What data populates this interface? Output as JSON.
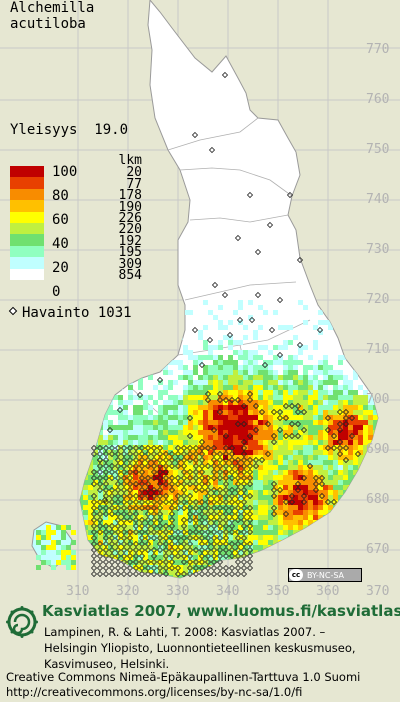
{
  "species": {
    "line1": "Alchemilla",
    "line2": "acutiloba"
  },
  "frequency": {
    "label": "Yleisyys",
    "value": "19.0"
  },
  "legend": {
    "count_header": "lkm",
    "percent_labels": [
      "100",
      "80",
      "60",
      "40",
      "20",
      "0"
    ],
    "classes": [
      {
        "color": "#c00000",
        "count": "20"
      },
      {
        "color": "#e84000",
        "count": "77"
      },
      {
        "color": "#f88c00",
        "count": "178"
      },
      {
        "color": "#ffc000",
        "count": "190"
      },
      {
        "color": "#ffff00",
        "count": "226"
      },
      {
        "color": "#c0f040",
        "count": "220"
      },
      {
        "color": "#70e070",
        "count": "192"
      },
      {
        "color": "#90ffc0",
        "count": "195"
      },
      {
        "color": "#c0ffff",
        "count": "309"
      },
      {
        "color": "#ffffff",
        "count": "854"
      }
    ],
    "observation_label": "Havainto",
    "observation_count": "1031"
  },
  "grid_labels": {
    "northing": [
      "770",
      "760",
      "750",
      "740",
      "730",
      "720",
      "710",
      "700",
      "690",
      "680",
      "670"
    ],
    "easting": [
      "310",
      "320",
      "330",
      "340",
      "350",
      "360",
      "370"
    ]
  },
  "license_badge": {
    "cc": "cc",
    "text": "BY-NC-SA"
  },
  "footer": {
    "title": "Kasviatlas 2007, www.luomus.fi/kasviatlas",
    "citation_line1": "Lampinen, R. & Lahti, T. 2008: Kasviatlas 2007. –",
    "citation_line2": "Helsingin Yliopisto, Luonnontieteellinen keskusmuseo,",
    "citation_line3": "Kasvimuseo, Helsinki.",
    "license_line1": "Creative Commons Nimeä-Epäkaupallinen-Tarttuva 1.0 Suomi",
    "license_line2": "http://creativecommons.org/licenses/by-nc-sa/1.0/fi"
  },
  "colors": {
    "background": "#e6e7d2",
    "footer_accent": "#1f6c37",
    "grid_label": "#b3b3b3"
  }
}
